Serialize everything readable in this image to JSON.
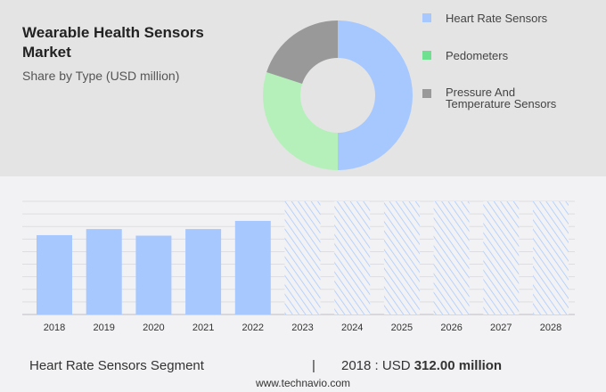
{
  "title": "Wearable Health Sensors Market",
  "subtitle": "Share by Type (USD million)",
  "legend": [
    {
      "label": "Heart Rate Sensors",
      "color": "#a6c8ff"
    },
    {
      "label": "Pedometers",
      "color": "#6fe08f"
    },
    {
      "label": "Pressure And Temperature Sensors",
      "color": "#999999"
    }
  ],
  "footer": {
    "segment": "Heart Rate Sensors Segment",
    "sep": "|",
    "year_label": "2018 : USD",
    "value": "312.00 million",
    "url": "www.technavio.com"
  },
  "chart_data": [
    {
      "type": "pie",
      "donut": true,
      "labels": [
        "Heart Rate Sensors",
        "Pedometers",
        "Pressure And Temperature Sensors"
      ],
      "values": [
        50,
        30,
        20
      ],
      "colors": [
        "#a6c8ff",
        "#b5f0bb",
        "#999999"
      ]
    },
    {
      "type": "bar",
      "categories": [
        "2018",
        "2019",
        "2020",
        "2021",
        "2022",
        "2023",
        "2024",
        "2025",
        "2026",
        "2027",
        "2028"
      ],
      "values": [
        312,
        336,
        310,
        336,
        368,
        null,
        null,
        null,
        null,
        null,
        null
      ],
      "forecast": [
        "2023",
        "2024",
        "2025",
        "2026",
        "2027",
        "2028"
      ],
      "ylim": [
        0,
        445
      ],
      "grid": true,
      "color": "#a6c8ff"
    }
  ]
}
